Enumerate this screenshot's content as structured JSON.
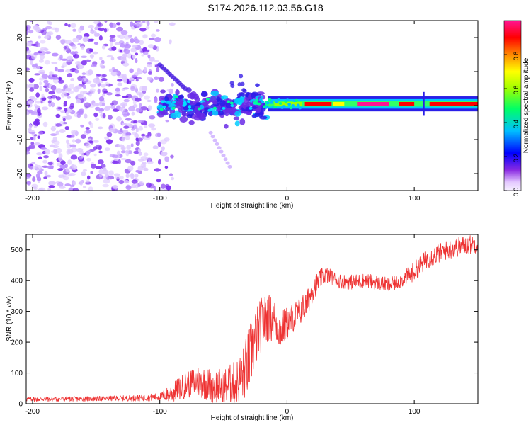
{
  "title": "S174.2026.112.03.56.G18",
  "colors": {
    "snr_line": "#ee3333",
    "spectrogram_scatter": "#7a3cf0",
    "colormap": [
      "#f6f0ff",
      "#e3c7ff",
      "#8a2be2",
      "#0000ff",
      "#00bfff",
      "#00ff66",
      "#a0ff00",
      "#ffff00",
      "#ff8800",
      "#ff0000",
      "#ff1493"
    ]
  },
  "chart_data": [
    {
      "type": "heatmap",
      "name": "spectrogram",
      "xlabel": "Height of straight line (km)",
      "ylabel": "Frequency (Hz)",
      "xlim": [
        -205,
        150
      ],
      "ylim": [
        -25,
        25
      ],
      "xticks": [
        -200,
        -100,
        0,
        100
      ],
      "yticks": [
        -20,
        -10,
        0,
        10,
        20
      ],
      "colorbar": {
        "label": "Normalized spectral amplitude",
        "range": [
          0.0,
          1.0
        ],
        "ticks": [
          "0.0",
          "0.2",
          "0.4",
          "0.6",
          "0.8"
        ]
      },
      "features": {
        "noise_region_x": [
          -205,
          -100
        ],
        "blob_region_x": [
          -100,
          -15
        ],
        "band_region_x": [
          -15,
          150
        ],
        "band_center_hz": 0.5,
        "band_amplitude_peak": 0.95,
        "streak": {
          "x": [
            -100,
            -80
          ],
          "y": [
            12,
            5
          ]
        },
        "tail": {
          "x": [
            -60,
            -45
          ],
          "y": [
            -8,
            -18
          ]
        }
      }
    },
    {
      "type": "line",
      "name": "snr",
      "xlabel": "Height of straight line (km)",
      "ylabel": "SNR (10 * v/v)",
      "xlim": [
        -205,
        150
      ],
      "ylim": [
        0,
        550
      ],
      "xticks": [
        -200,
        -100,
        0,
        100
      ],
      "yticks": [
        0,
        100,
        200,
        300,
        400,
        500
      ],
      "series": [
        {
          "name": "SNR",
          "x": [
            -205,
            -180,
            -160,
            -140,
            -120,
            -110,
            -100,
            -90,
            -80,
            -70,
            -60,
            -50,
            -40,
            -35,
            -30,
            -25,
            -20,
            -15,
            -10,
            -5,
            0,
            5,
            10,
            15,
            20,
            25,
            30,
            40,
            50,
            60,
            70,
            80,
            90,
            100,
            110,
            120,
            130,
            140,
            150
          ],
          "y": [
            15,
            15,
            16,
            17,
            18,
            20,
            22,
            35,
            60,
            75,
            60,
            55,
            70,
            90,
            140,
            210,
            260,
            280,
            270,
            240,
            260,
            280,
            300,
            320,
            370,
            400,
            420,
            400,
            395,
            400,
            395,
            385,
            400,
            430,
            470,
            490,
            505,
            515,
            520
          ],
          "spread": [
            10,
            10,
            10,
            10,
            12,
            14,
            16,
            40,
            55,
            65,
            70,
            75,
            90,
            110,
            140,
            120,
            110,
            100,
            90,
            80,
            70,
            60,
            60,
            60,
            50,
            40,
            35,
            30,
            30,
            30,
            30,
            30,
            30,
            40,
            40,
            40,
            40,
            40,
            40
          ]
        }
      ]
    }
  ]
}
